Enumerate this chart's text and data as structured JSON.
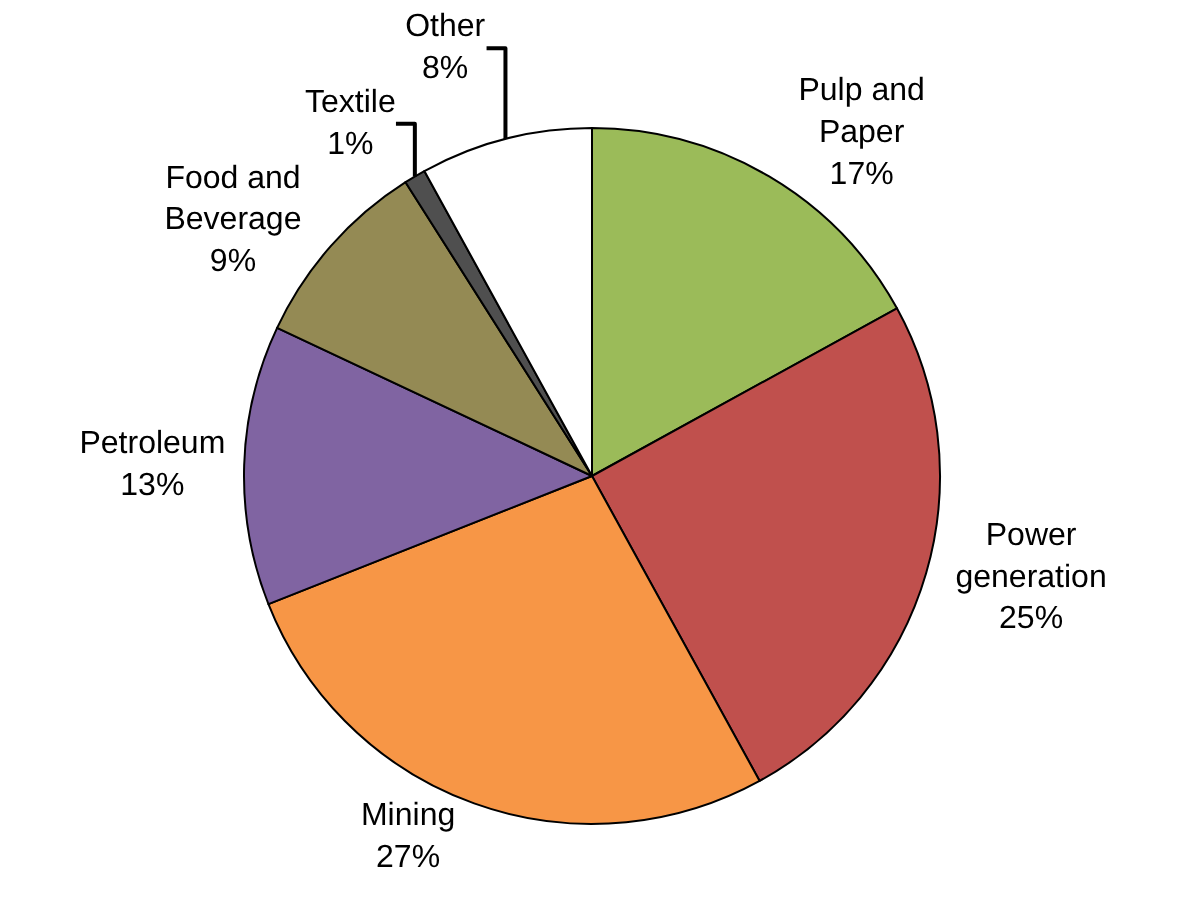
{
  "chart_data": {
    "type": "pie",
    "categories": [
      "Pulp and Paper",
      "Power generation",
      "Mining",
      "Petroleum",
      "Food and Beverage",
      "Textile",
      "Other"
    ],
    "values": [
      17,
      25,
      27,
      13,
      9,
      1,
      8
    ],
    "colors": [
      "#9bbb59",
      "#c0504d",
      "#f79646",
      "#8064a2",
      "#948a54",
      "#4f4f4f",
      "#ffffff"
    ],
    "value_labels": [
      "17%",
      "25%",
      "27%",
      "13%",
      "9%",
      "1%",
      "8%"
    ],
    "legend": false
  }
}
